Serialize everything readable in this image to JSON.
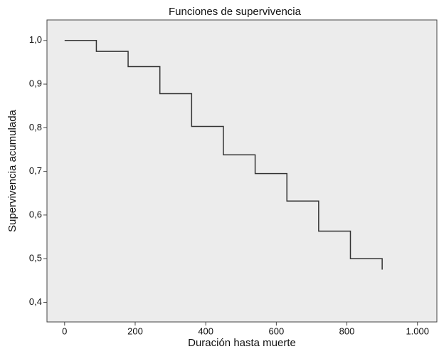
{
  "chart_data": {
    "type": "line",
    "step": "post",
    "title": "Funciones de supervivencia",
    "x_label": "Duración hasta muerte",
    "y_label": "Supervivencia acumulada",
    "x": [
      0,
      90,
      180,
      270,
      360,
      450,
      540,
      630,
      720,
      810,
      900
    ],
    "values": [
      1.0,
      0.975,
      0.94,
      0.878,
      0.803,
      0.738,
      0.695,
      0.632,
      0.563,
      0.5,
      0.475
    ],
    "color": "#333333",
    "background": "#ececec",
    "xlim": [
      -50,
      1055
    ],
    "xticks": [
      0,
      200,
      400,
      600,
      800,
      {
        "value": 1000,
        "label": "1.000"
      }
    ],
    "ylim": [
      0.355,
      1.047
    ],
    "yticks": [
      {
        "value": 0.4,
        "label": "0,4"
      },
      {
        "value": 0.5,
        "label": "0,5"
      },
      {
        "value": 0.6,
        "label": "0,6"
      },
      {
        "value": 0.7,
        "label": "0,7"
      },
      {
        "value": 0.8,
        "label": "0,8"
      },
      {
        "value": 0.9,
        "label": "0,9"
      },
      {
        "value": 1.0,
        "label": "1,0"
      }
    ],
    "grid": false
  }
}
